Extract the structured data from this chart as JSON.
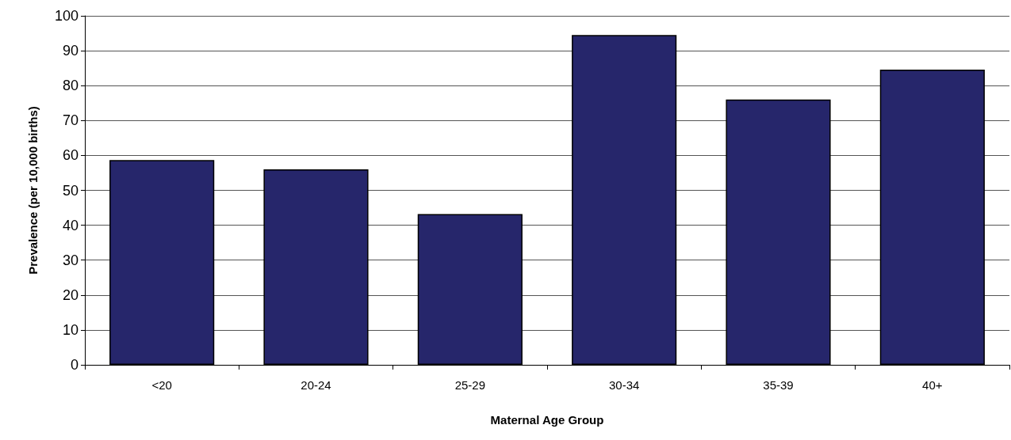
{
  "chart_data": {
    "type": "bar",
    "xlabel": "Maternal Age Group",
    "ylabel": "Prevalence (per 10,000 births)",
    "categories": [
      "<20",
      "20-24",
      "25-29",
      "30-34",
      "35-39",
      "40+"
    ],
    "values": [
      58.7,
      56.0,
      43.2,
      94.5,
      76.0,
      84.6
    ],
    "color": "#26266b",
    "ylim": [
      0,
      100
    ],
    "yticks": [
      0,
      10,
      20,
      30,
      40,
      50,
      60,
      70,
      80,
      90,
      100
    ],
    "grid": "y"
  }
}
